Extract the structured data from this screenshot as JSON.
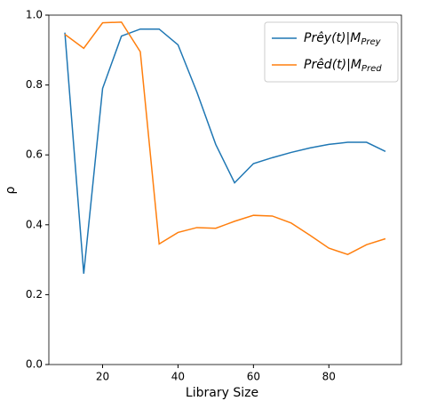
{
  "chart_data": {
    "type": "line",
    "x_label": "Library Size",
    "y_label": "ρ",
    "x": [
      10,
      15,
      20,
      25,
      30,
      35,
      40,
      45,
      50,
      55,
      60,
      65,
      70,
      75,
      80,
      85,
      90,
      95
    ],
    "series": [
      {
        "name": "Prêy(t)|MPrey",
        "color": "#1f77b4",
        "values": [
          0.95,
          0.26,
          0.79,
          0.94,
          0.96,
          0.96,
          0.915,
          0.78,
          0.63,
          0.52,
          0.575,
          0.592,
          0.607,
          0.62,
          0.63,
          0.636,
          0.636,
          0.61
        ]
      },
      {
        "name": "Prêd(t)|MPred",
        "color": "#ff7f0e",
        "values": [
          0.945,
          0.905,
          0.978,
          0.98,
          0.895,
          0.345,
          0.378,
          0.392,
          0.39,
          0.41,
          0.427,
          0.425,
          0.405,
          0.37,
          0.333,
          0.315,
          0.343,
          0.36
        ]
      }
    ],
    "xlim": [
      5.75,
      99.25
    ],
    "ylim": [
      0,
      1
    ],
    "xticks": [
      20,
      40,
      60,
      80
    ],
    "yticks": [
      {
        "value": 0,
        "label": "0.0"
      },
      0.2,
      0.4,
      0.6,
      0.8,
      {
        "value": 1,
        "label": "1.0"
      }
    ],
    "legend": "upper right",
    "grid": false
  }
}
